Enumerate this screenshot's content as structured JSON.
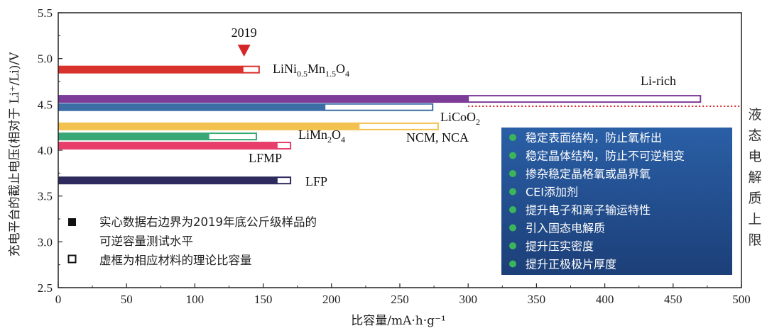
{
  "chart_data": {
    "type": "bar",
    "orientation": "horizontal-range",
    "title": "",
    "xlabel": "比容量/mA·h·g⁻¹",
    "ylabel": "充电平台的截止电压(相对于 Li⁺/Li)/V",
    "xlim": [
      0,
      500
    ],
    "ylim": [
      2.5,
      5.5
    ],
    "xticks": [
      0,
      50,
      100,
      150,
      200,
      250,
      300,
      350,
      400,
      450,
      500
    ],
    "yticks": [
      2.5,
      3.0,
      3.5,
      4.0,
      4.5,
      5.0,
      5.5
    ],
    "x_tick_labels": [
      "0",
      "50",
      "100",
      "150",
      "200",
      "250",
      "300",
      "350",
      "400",
      "450",
      "500"
    ],
    "y_tick_labels": [
      "2.5",
      "3.0",
      "3.5",
      "4.0",
      "4.5",
      "5.0",
      "5.5"
    ],
    "series": [
      {
        "name": "LiNi0.5Mn1.5O4",
        "voltage": 4.88,
        "practical": 135,
        "theoretical": 147,
        "color": "#d9312b"
      },
      {
        "name": "Li-rich",
        "voltage": 4.56,
        "practical": 300,
        "theoretical": 470,
        "color": "#7d3c98"
      },
      {
        "name": "LiCoO2",
        "voltage": 4.47,
        "practical": 195,
        "theoretical": 274,
        "color": "#3a6ea5"
      },
      {
        "name": "NCM, NCA",
        "voltage": 4.26,
        "practical": 220,
        "theoretical": 278,
        "color": "#f2c14e"
      },
      {
        "name": "LiMn2O4",
        "voltage": 4.15,
        "practical": 110,
        "theoretical": 145,
        "color": "#3aa876"
      },
      {
        "name": "LFMP",
        "voltage": 4.05,
        "practical": 160,
        "theoretical": 170,
        "color": "#e83e6b"
      },
      {
        "name": "LFP",
        "voltage": 3.67,
        "practical": 160,
        "theoretical": 170,
        "color": "#2e2a5e"
      }
    ],
    "reference_line": {
      "voltage": 4.48,
      "color": "#d62728"
    },
    "annotations": {
      "year_marker": {
        "text": "2019",
        "x": 136,
        "color": "#d62728"
      }
    }
  },
  "labels": {
    "linimno": {
      "base1": "LiNi",
      "sub1": "0.5",
      "base2": "Mn",
      "sub2": "1.5",
      "base3": "O",
      "sub3": "4"
    },
    "lirich": "Li-rich",
    "licoo2": {
      "base": "LiCoO",
      "sub": "2"
    },
    "ncm": "NCM, NCA",
    "limn2o4": {
      "base1": "LiMn",
      "sub1": "2",
      "base2": "O",
      "sub2": "4"
    },
    "lfmp": "LFMP",
    "lfp": "LFP"
  },
  "legend": {
    "filled": {
      "line1": "实心数据右边界为2019年底公斤级样品的",
      "line2": "可逆容量测试水平"
    },
    "hollow": "虚框为相应材料的理论比容量"
  },
  "side_label": [
    "液",
    "态",
    "电",
    "解",
    "质",
    "上",
    "限"
  ],
  "panel": {
    "background": "#1f4f8f",
    "bullet_color": "#3cb55a",
    "items": [
      "稳定表面结构，防止氧析出",
      "稳定晶体结构，防止不可逆相变",
      "掺杂稳定晶格氧或晶界氧",
      "CEI添加剂",
      "提升电子和离子输运特性",
      "引入固态电解质",
      "提升压实密度",
      "提升正极极片厚度"
    ]
  }
}
